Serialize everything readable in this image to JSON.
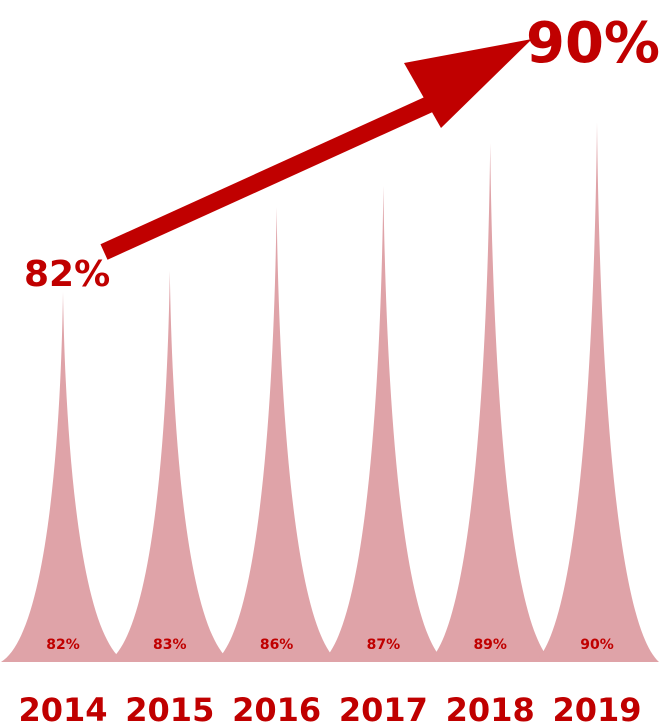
{
  "chart_data": {
    "type": "bar",
    "categories": [
      "2014",
      "2015",
      "2016",
      "2017",
      "2018",
      "2019"
    ],
    "values": [
      82,
      83,
      86,
      87,
      89,
      90
    ],
    "value_labels": [
      "82%",
      "83%",
      "86%",
      "87%",
      "89%",
      "90%"
    ],
    "ylim": [
      74,
      92
    ],
    "grid": false,
    "legend": "none",
    "annotations": {
      "start_label": "82%",
      "end_label": "90%"
    },
    "colors": {
      "bar_fill": "#dfa3a8",
      "text": "#c00000",
      "arrow": "#c00000"
    }
  }
}
